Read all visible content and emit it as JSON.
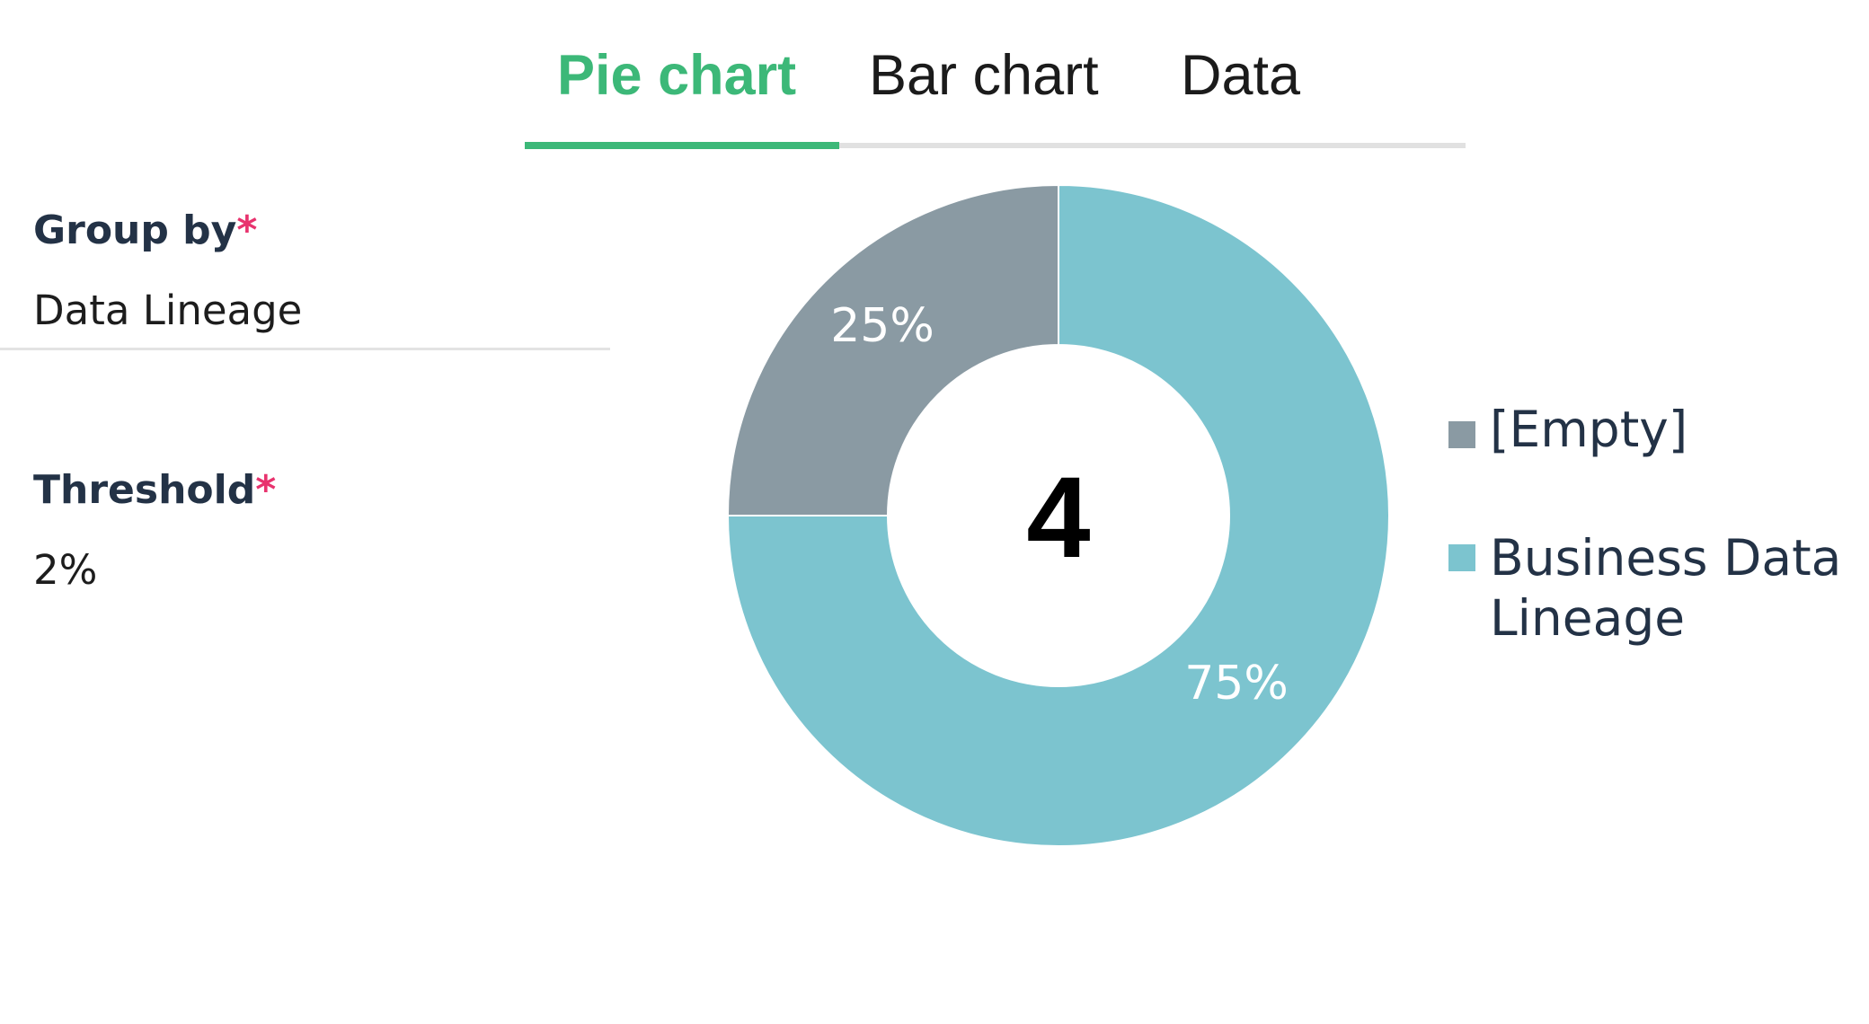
{
  "tabs": [
    {
      "label": "Pie chart",
      "active": true
    },
    {
      "label": "Bar chart",
      "active": false
    },
    {
      "label": "Data",
      "active": false
    }
  ],
  "form": {
    "group_by": {
      "label": "Group by",
      "required_mark": "*",
      "value": "Data Lineage"
    },
    "threshold": {
      "label": "Threshold",
      "required_mark": "*",
      "value": "2%"
    }
  },
  "colors": {
    "accent": "#3cb878",
    "required": "#e8336e",
    "slice_empty": "#8a9aa3",
    "slice_business": "#7cc4cf"
  },
  "chart_data": {
    "type": "pie",
    "donut": true,
    "center_total": "4",
    "categories": [
      "[Empty]",
      "Business Data Lineage"
    ],
    "values": [
      1,
      3
    ],
    "percent_labels": [
      "25%",
      "75%"
    ],
    "colors": [
      "#8a9aa3",
      "#7cc4cf"
    ],
    "legend_position": "right"
  }
}
